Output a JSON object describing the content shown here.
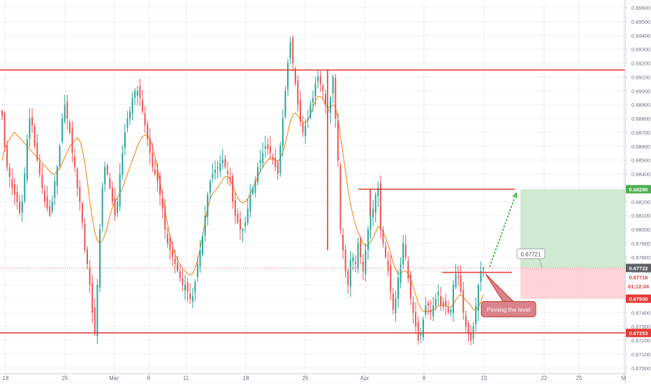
{
  "chart_data": {
    "type": "candlestick",
    "title": "",
    "ylim": [
      0.6695,
      0.697
    ],
    "x_ticks": [
      "18",
      "25",
      "Mar",
      "6",
      "11",
      "18",
      "25",
      "Apr",
      "8",
      "15",
      "22",
      "25",
      "M"
    ],
    "y_ticks": [
      "0.66900",
      "0.67000",
      "0.67100",
      "0.67200",
      "0.67300",
      "0.67400",
      "0.67500",
      "0.67600",
      "0.67700",
      "0.67800",
      "0.67900",
      "0.68000",
      "0.68100",
      "0.68200",
      "0.68300",
      "0.68400",
      "0.68500",
      "0.68600",
      "0.68700",
      "0.68800",
      "0.68900",
      "0.69000",
      "0.69100",
      "0.69200",
      "0.69300",
      "0.69400",
      "0.69500",
      "0.69600"
    ],
    "price_labels": {
      "target": "0.68290",
      "current": "0.67722",
      "entry": "0.67716",
      "countdown": "01:12:34",
      "stop": "0.67500",
      "support": "0.67253"
    },
    "levels": {
      "resistance": 0.6915,
      "support": 0.67253,
      "breakout_top": 0.6829,
      "breakout_start": 0.683,
      "pinned_level": 0.6769,
      "current": 0.67722,
      "stop": 0.675
    },
    "annotations": {
      "callout_value": "0.67721",
      "comment": "Pinning the level"
    },
    "colors": {
      "up": "#26a69a",
      "down": "#ef5350",
      "moving_average": "#f57c00",
      "level_line": "#e53935",
      "target_zone": "#c8e6c9",
      "stop_zone": "#ffcdd2",
      "arrow": "#1fa51f",
      "comment_bg": "#d9828c"
    },
    "closes": [
      0.6882,
      0.686,
      0.6845,
      0.6838,
      0.683,
      0.6825,
      0.682,
      0.6812,
      0.682,
      0.684,
      0.6865,
      0.688,
      0.6875,
      0.686,
      0.685,
      0.684,
      0.683,
      0.682,
      0.6815,
      0.681,
      0.682,
      0.6835,
      0.6845,
      0.686,
      0.688,
      0.689,
      0.688,
      0.687,
      0.6855,
      0.6845,
      0.683,
      0.682,
      0.6805,
      0.6785,
      0.6775,
      0.676,
      0.674,
      0.6725,
      0.676,
      0.68,
      0.683,
      0.6845,
      0.684,
      0.683,
      0.682,
      0.681,
      0.682,
      0.684,
      0.6855,
      0.687,
      0.688,
      0.6885,
      0.6895,
      0.69,
      0.69,
      0.6895,
      0.6885,
      0.6875,
      0.6865,
      0.6855,
      0.6845,
      0.684,
      0.6835,
      0.6825,
      0.6815,
      0.68,
      0.679,
      0.6785,
      0.678,
      0.6775,
      0.677,
      0.6765,
      0.676,
      0.676,
      0.6755,
      0.675,
      0.6752,
      0.6762,
      0.6775,
      0.6785,
      0.6795,
      0.681,
      0.6825,
      0.6835,
      0.684,
      0.6843,
      0.6845,
      0.6848,
      0.685,
      0.6845,
      0.684,
      0.6835,
      0.682,
      0.681,
      0.6805,
      0.68,
      0.68,
      0.6805,
      0.6815,
      0.6825,
      0.683,
      0.6835,
      0.6845,
      0.685,
      0.6855,
      0.686,
      0.6858,
      0.6855,
      0.685,
      0.6845,
      0.684,
      0.686,
      0.688,
      0.69,
      0.692,
      0.6935,
      0.692,
      0.6905,
      0.689,
      0.6878,
      0.687,
      0.6875,
      0.688,
      0.689,
      0.6895,
      0.6905,
      0.691,
      0.6905,
      0.69,
      0.689,
      0.6885,
      0.6895,
      0.691,
      0.688,
      0.685,
      0.68,
      0.6785,
      0.677,
      0.676,
      0.6778,
      0.678,
      0.6775,
      0.679,
      0.678,
      0.677,
      0.6785,
      0.68,
      0.681,
      0.6815,
      0.6825,
      0.683,
      0.68,
      0.679,
      0.678,
      0.677,
      0.6755,
      0.6742,
      0.675,
      0.6765,
      0.6775,
      0.679,
      0.678,
      0.6765,
      0.675,
      0.674,
      0.673,
      0.672,
      0.6725,
      0.6735,
      0.6745,
      0.6745,
      0.674,
      0.6745,
      0.675,
      0.6755,
      0.6745,
      0.6745,
      0.6745,
      0.674,
      0.6742,
      0.676,
      0.6768,
      0.6765,
      0.6755,
      0.674,
      0.673,
      0.6725,
      0.672,
      0.673,
      0.6745,
      0.676,
      0.677,
      0.6772
    ],
    "moving_average": [
      0.685,
      0.6858,
      0.6862,
      0.6865,
      0.6868,
      0.687,
      0.6868,
      0.6866,
      0.6864,
      0.6862,
      0.686,
      0.6858,
      0.6856,
      0.6854,
      0.6852,
      0.685,
      0.6848,
      0.6846,
      0.6844,
      0.6842,
      0.684,
      0.684,
      0.6842,
      0.6844,
      0.6848,
      0.6852,
      0.6856,
      0.686,
      0.6862,
      0.6864,
      0.6866,
      0.6864,
      0.6858,
      0.6848,
      0.6835,
      0.682,
      0.6808,
      0.6798,
      0.6792,
      0.679,
      0.6792,
      0.6796,
      0.6802,
      0.681,
      0.6816,
      0.682,
      0.6823,
      0.6826,
      0.683,
      0.6835,
      0.684,
      0.6845,
      0.685,
      0.6855,
      0.686,
      0.6864,
      0.6867,
      0.6868,
      0.6868,
      0.6865,
      0.686,
      0.6853,
      0.6844,
      0.6834,
      0.6824,
      0.6814,
      0.6804,
      0.6795,
      0.6788,
      0.6782,
      0.6778,
      0.6775,
      0.6772,
      0.677,
      0.6768,
      0.6767,
      0.6768,
      0.6772,
      0.6778,
      0.6786,
      0.6796,
      0.6806,
      0.6815,
      0.6822,
      0.6826,
      0.6828,
      0.683,
      0.6833,
      0.6836,
      0.6838,
      0.6838,
      0.6836,
      0.6832,
      0.6827,
      0.6823,
      0.682,
      0.6819,
      0.682,
      0.6822,
      0.6826,
      0.683,
      0.6834,
      0.6838,
      0.6842,
      0.6845,
      0.6848,
      0.685,
      0.6852,
      0.6852,
      0.685,
      0.6849,
      0.6851,
      0.6856,
      0.6862,
      0.687,
      0.6878,
      0.6883,
      0.6884,
      0.6882,
      0.6879,
      0.6877,
      0.6877,
      0.6879,
      0.6883,
      0.6888,
      0.6893,
      0.6896,
      0.6896,
      0.6894,
      0.689,
      0.6888,
      0.6888,
      0.689,
      0.6888,
      0.688,
      0.6867,
      0.6855,
      0.6842,
      0.6829,
      0.6818,
      0.681,
      0.6803,
      0.6798,
      0.6794,
      0.679,
      0.6788,
      0.6789,
      0.6791,
      0.6794,
      0.6798,
      0.6802,
      0.6801,
      0.6798,
      0.6794,
      0.6789,
      0.6783,
      0.6776,
      0.6771,
      0.6768,
      0.6768,
      0.677,
      0.677,
      0.6768,
      0.6764,
      0.6759,
      0.6753,
      0.6747,
      0.6743,
      0.6741,
      0.6741,
      0.6741,
      0.6741,
      0.6742,
      0.6743,
      0.6745,
      0.6745,
      0.6745,
      0.6745,
      0.6744,
      0.6744,
      0.6746,
      0.6749,
      0.6752,
      0.6753,
      0.6751,
      0.6749,
      0.6747,
      0.6745,
      0.6742,
      0.6742,
      0.6744,
      0.6748,
      0.6753
    ],
    "grid": true
  }
}
